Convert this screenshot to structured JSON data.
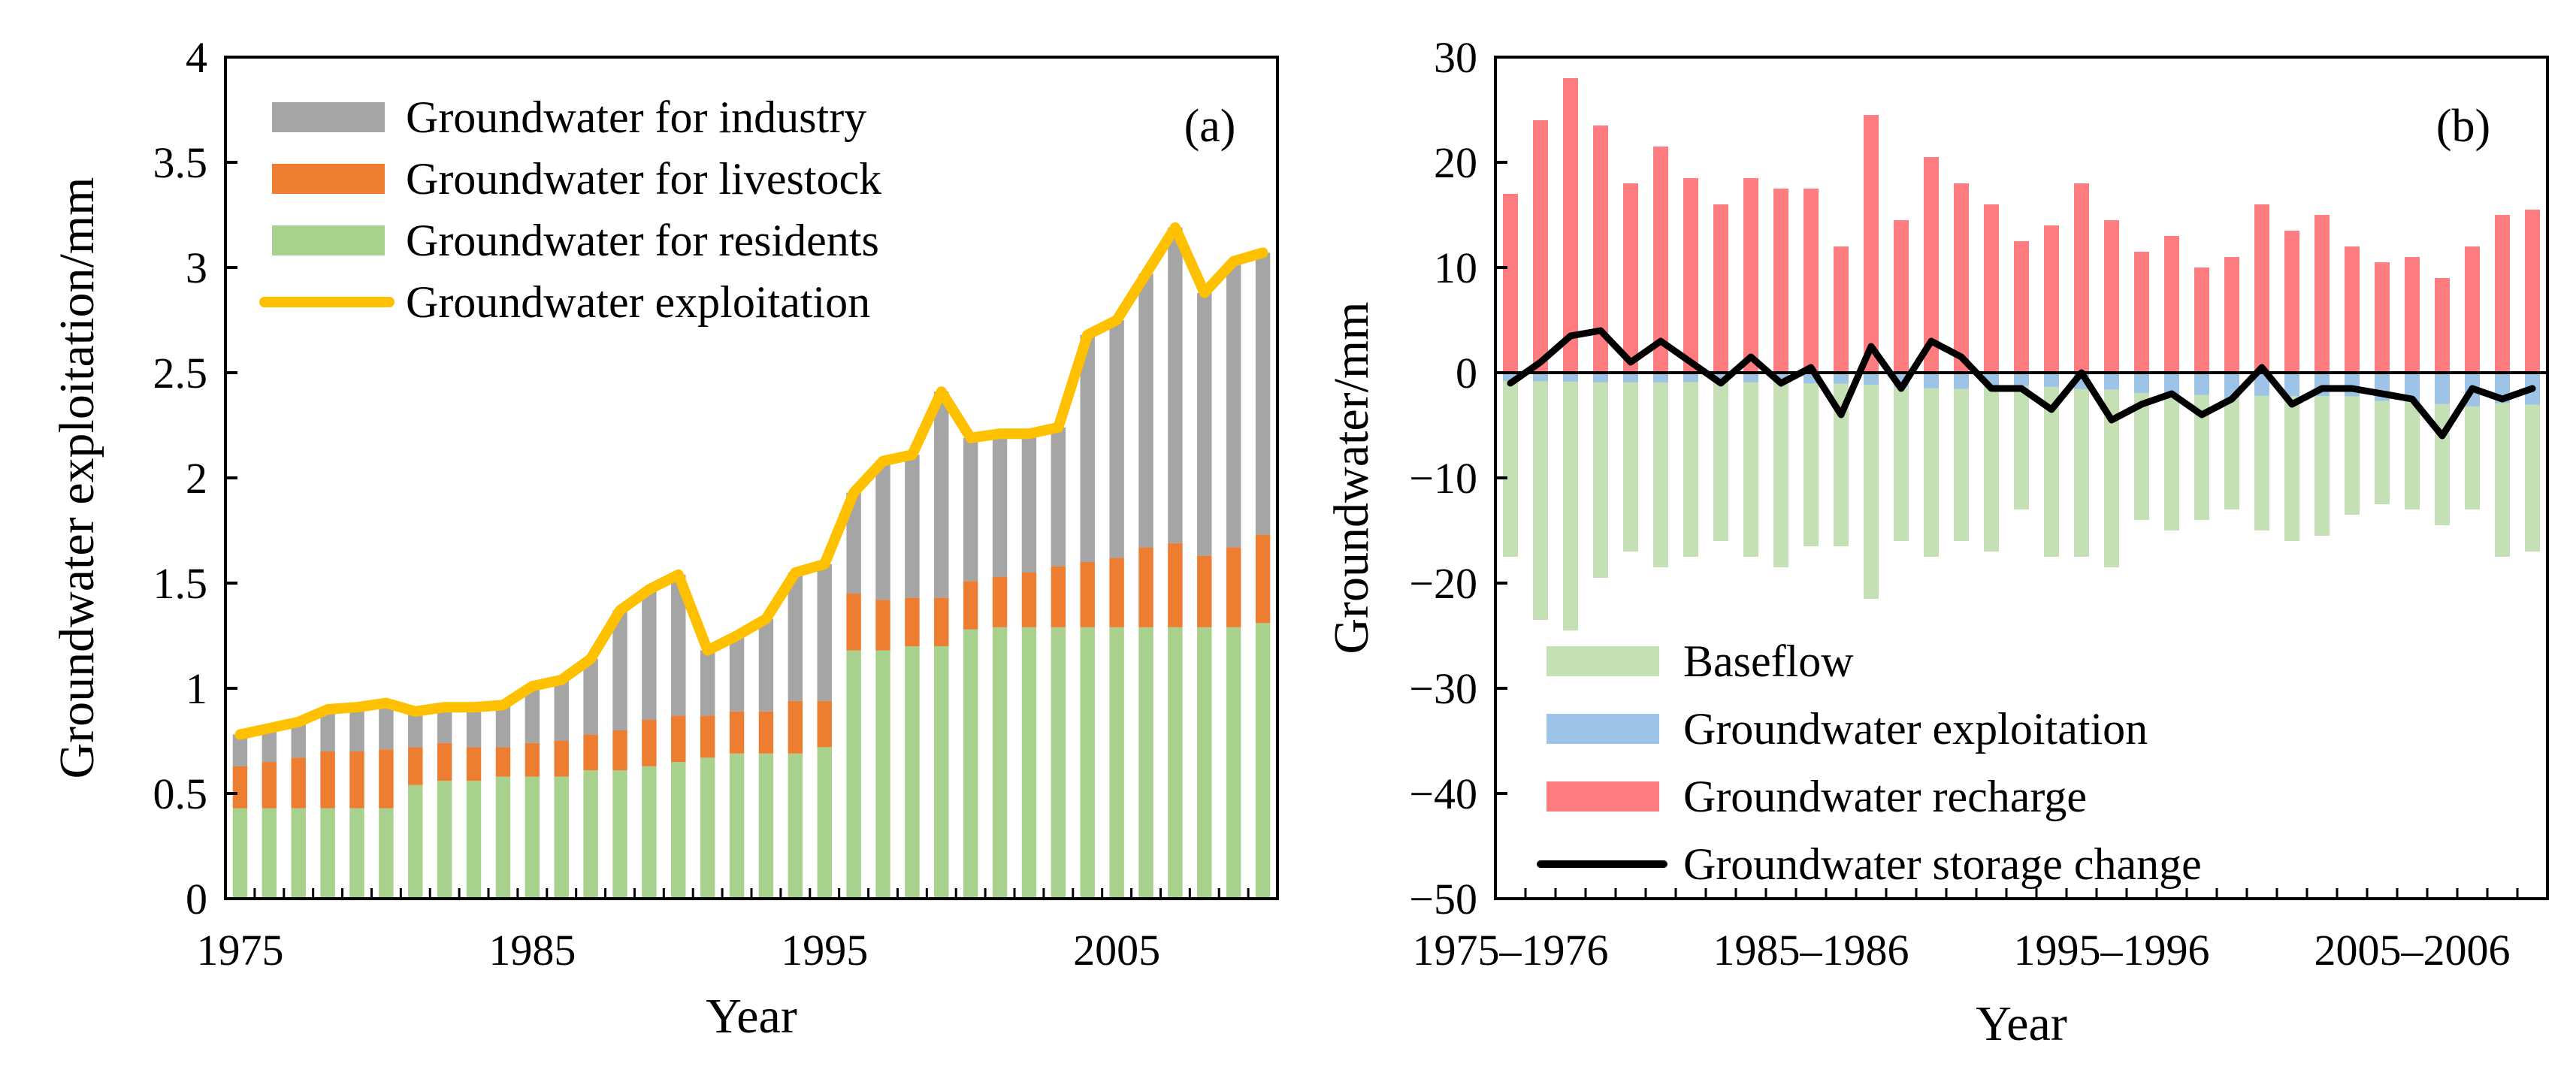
{
  "chart_data": [
    {
      "type": "bar",
      "stacked": true,
      "panel_label": "(a)",
      "title": "",
      "xlabel": "Year",
      "ylabel": "Groundwater exploitation/mm",
      "ylim": [
        0,
        4
      ],
      "yticks": [
        "0",
        "0.5",
        "1",
        "1.5",
        "2",
        "2.5",
        "3",
        "3.5",
        "4"
      ],
      "xtick_labels": [
        "1975",
        "1985",
        "1995",
        "2005"
      ],
      "grid": false,
      "legend_position": "top-left",
      "categories": [
        "1975",
        "1976",
        "1977",
        "1978",
        "1979",
        "1980",
        "1981",
        "1982",
        "1983",
        "1984",
        "1985",
        "1986",
        "1987",
        "1988",
        "1989",
        "1990",
        "1991",
        "1992",
        "1993",
        "1994",
        "1995",
        "1996",
        "1997",
        "1998",
        "1999",
        "2000",
        "2001",
        "2002",
        "2003",
        "2004",
        "2005",
        "2006",
        "2007",
        "2008",
        "2009",
        "2010"
      ],
      "series": [
        {
          "name": "Groundwater for residents",
          "kind": "bar",
          "color": "#a9d18e",
          "values": [
            0.43,
            0.43,
            0.43,
            0.43,
            0.43,
            0.43,
            0.54,
            0.56,
            0.56,
            0.58,
            0.58,
            0.58,
            0.61,
            0.61,
            0.63,
            0.65,
            0.67,
            0.69,
            0.69,
            0.69,
            0.72,
            1.18,
            1.18,
            1.2,
            1.2,
            1.28,
            1.29,
            1.29,
            1.29,
            1.29,
            1.29,
            1.29,
            1.29,
            1.29,
            1.29,
            1.31
          ]
        },
        {
          "name": "Groundwater for livestock",
          "kind": "bar",
          "color": "#ed7d31",
          "values": [
            0.2,
            0.22,
            0.24,
            0.27,
            0.27,
            0.28,
            0.18,
            0.18,
            0.16,
            0.14,
            0.16,
            0.17,
            0.17,
            0.19,
            0.22,
            0.22,
            0.2,
            0.2,
            0.2,
            0.25,
            0.22,
            0.27,
            0.24,
            0.23,
            0.23,
            0.23,
            0.24,
            0.26,
            0.29,
            0.31,
            0.33,
            0.38,
            0.4,
            0.34,
            0.38,
            0.42
          ]
        },
        {
          "name": "Groundwater for industry",
          "kind": "bar",
          "color": "#a5a5a5",
          "values": [
            0.15,
            0.16,
            0.17,
            0.2,
            0.21,
            0.22,
            0.17,
            0.17,
            0.19,
            0.2,
            0.27,
            0.29,
            0.36,
            0.57,
            0.62,
            0.67,
            0.31,
            0.36,
            0.44,
            0.61,
            0.65,
            0.48,
            0.66,
            0.68,
            0.98,
            0.68,
            0.68,
            0.66,
            0.66,
            1.08,
            1.13,
            1.3,
            1.5,
            1.25,
            1.36,
            1.34
          ]
        },
        {
          "name": "Groundwater exploitation",
          "kind": "line",
          "color": "#ffc000",
          "values": [
            0.78,
            0.81,
            0.84,
            0.9,
            0.91,
            0.93,
            0.89,
            0.91,
            0.91,
            0.92,
            1.01,
            1.04,
            1.14,
            1.37,
            1.47,
            1.54,
            1.18,
            1.25,
            1.33,
            1.55,
            1.59,
            1.93,
            2.08,
            2.11,
            2.41,
            2.19,
            2.21,
            2.21,
            2.24,
            2.68,
            2.75,
            2.97,
            3.19,
            2.88,
            3.03,
            3.07
          ]
        }
      ]
    },
    {
      "type": "bar",
      "panel_label": "(b)",
      "title": "",
      "xlabel": "Year",
      "ylabel": "Groundwater/mm",
      "ylim": [
        -50,
        30
      ],
      "yticks": [
        "30",
        "20",
        "10",
        "0",
        "−10",
        "−20",
        "−30",
        "−40",
        "−50"
      ],
      "xtick_labels": [
        "1975–1976",
        "1985–1986",
        "1995–1996",
        "2005–2006"
      ],
      "grid": false,
      "legend_position": "bottom-left",
      "categories": [
        "1975–1976",
        "1976–1977",
        "1977–1978",
        "1978–1979",
        "1979–1980",
        "1980–1981",
        "1981–1982",
        "1982–1983",
        "1983–1984",
        "1984–1985",
        "1985–1986",
        "1986–1987",
        "1987–1988",
        "1988–1989",
        "1989–1990",
        "1990–1991",
        "1991–1992",
        "1992–1993",
        "1993–1994",
        "1994–1995",
        "1995–1996",
        "1996–1997",
        "1997–1998",
        "1998–1999",
        "1999–2000",
        "2000–2001",
        "2001–2002",
        "2002–2003",
        "2003–2004",
        "2004–2005",
        "2005–2006",
        "2006–2007",
        "2007–2008",
        "2008–2009",
        "2009–2010"
      ],
      "series": [
        {
          "name": "Baseflow",
          "kind": "bar",
          "color": "#c5e0b4",
          "values": [
            -17.5,
            -23.5,
            -24.5,
            -19.5,
            -17,
            -18.5,
            -17.5,
            -16,
            -17.5,
            -18.5,
            -16.5,
            -16.5,
            -21.5,
            -16,
            -17.5,
            -16,
            -17,
            -13,
            -17.5,
            -17.5,
            -18.5,
            -14,
            -15,
            -14,
            -13,
            -15,
            -16,
            -15.5,
            -13.5,
            -12.5,
            -13,
            -14.5,
            -13,
            -17.5,
            -17
          ]
        },
        {
          "name": "Groundwater exploitation",
          "kind": "bar",
          "color": "#9dc3e6",
          "values": [
            -0.78,
            -0.81,
            -0.84,
            -0.9,
            -0.91,
            -0.93,
            -0.89,
            -0.91,
            -0.91,
            -0.92,
            -1.01,
            -1.04,
            -1.14,
            -1.37,
            -1.47,
            -1.54,
            -1.18,
            -1.25,
            -1.33,
            -1.55,
            -1.59,
            -1.93,
            -2.08,
            -2.11,
            -2.41,
            -2.19,
            -2.21,
            -2.21,
            -2.24,
            -2.68,
            -2.75,
            -2.97,
            -3.19,
            -2.88,
            -3.03
          ]
        },
        {
          "name": "Groundwater recharge",
          "kind": "bar",
          "color": "#ff7c80",
          "values": [
            17,
            24,
            28,
            23.5,
            18,
            21.5,
            18.5,
            16,
            18.5,
            17.5,
            17.5,
            12,
            24.5,
            14.5,
            20.5,
            18,
            16,
            12.5,
            14,
            18,
            14.5,
            11.5,
            13,
            10,
            11,
            16,
            13.5,
            15,
            12,
            10.5,
            11,
            9,
            12,
            15,
            15.5
          ]
        },
        {
          "name": "Groundwater storage change",
          "kind": "line",
          "color": "#000000",
          "values": [
            -1,
            1,
            3.5,
            4,
            1,
            3,
            1,
            -1,
            1.5,
            -1,
            0.5,
            -4,
            2.5,
            -1.5,
            3,
            1.5,
            -1.5,
            -1.5,
            -3.5,
            0,
            -4.5,
            -3,
            -2,
            -4,
            -2.5,
            0.5,
            -3,
            -1.5,
            -1.5,
            -2,
            -2.5,
            -6,
            -1.5,
            -2.5,
            -1.5
          ]
        }
      ]
    }
  ]
}
